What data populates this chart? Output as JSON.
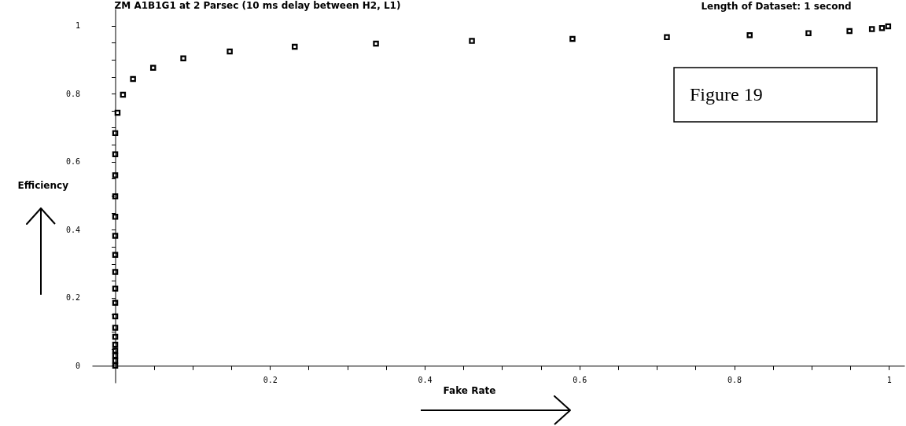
{
  "chart_data": {
    "type": "scatter",
    "title": "ZM A1B1G1 at 2 Parsec (10 ms delay between H2, L1)",
    "xlabel": "Fake Rate",
    "ylabel": "Efficiency",
    "annotations": [
      "Length of Dataset: 1 second",
      "Figure 19"
    ],
    "x": [
      0,
      0,
      0,
      0,
      0,
      0,
      0,
      0,
      0,
      0,
      0,
      0,
      0,
      0,
      0,
      0,
      0,
      0,
      0.003,
      0.01,
      0.023,
      0.049,
      0.088,
      0.148,
      0.232,
      0.337,
      0.461,
      0.591,
      0.713,
      0.82,
      0.896,
      0.949,
      0.978,
      0.991,
      0.999
    ],
    "values": [
      0,
      0.015,
      0.03,
      0.045,
      0.062,
      0.085,
      0.112,
      0.145,
      0.185,
      0.227,
      0.276,
      0.326,
      0.382,
      0.438,
      0.498,
      0.56,
      0.622,
      0.684,
      0.744,
      0.797,
      0.843,
      0.876,
      0.904,
      0.924,
      0.938,
      0.947,
      0.955,
      0.961,
      0.966,
      0.972,
      0.978,
      0.984,
      0.99,
      0.993,
      0.998
    ],
    "color": "#000000",
    "marker": "square",
    "grid": false,
    "xlim": [
      -0.03,
      1.02
    ],
    "ylim": [
      -0.05,
      1.05
    ],
    "xticks": [
      {
        "value": 0.05,
        "label": null
      },
      {
        "value": 0.1,
        "label": null
      },
      {
        "value": 0.15,
        "label": null
      },
      0.2,
      {
        "value": 0.25,
        "label": null
      },
      {
        "value": 0.3,
        "label": null
      },
      {
        "value": 0.35,
        "label": null
      },
      0.4,
      {
        "value": 0.45,
        "label": null
      },
      {
        "value": 0.5,
        "label": null
      },
      {
        "value": 0.55,
        "label": null
      },
      0.6,
      {
        "value": 0.65,
        "label": null
      },
      {
        "value": 0.7,
        "label": null
      },
      {
        "value": 0.75,
        "label": null
      },
      0.8,
      {
        "value": 0.85,
        "label": null
      },
      {
        "value": 0.9,
        "label": null
      },
      {
        "value": 0.95,
        "label": null
      },
      1
    ],
    "yticks": [
      0,
      {
        "value": 0.05,
        "label": null
      },
      {
        "value": 0.1,
        "label": null
      },
      {
        "value": 0.15,
        "label": null
      },
      0.2,
      {
        "value": 0.25,
        "label": null
      },
      {
        "value": 0.3,
        "label": null
      },
      {
        "value": 0.35,
        "label": null
      },
      0.4,
      {
        "value": 0.45,
        "label": null
      },
      {
        "value": 0.5,
        "label": null
      },
      {
        "value": 0.55,
        "label": null
      },
      0.6,
      {
        "value": 0.65,
        "label": null
      },
      {
        "value": 0.7,
        "label": null
      },
      {
        "value": 0.75,
        "label": null
      },
      0.8,
      {
        "value": 0.85,
        "label": null
      },
      {
        "value": 0.9,
        "label": null
      },
      {
        "value": 0.95,
        "label": null
      },
      1
    ]
  }
}
